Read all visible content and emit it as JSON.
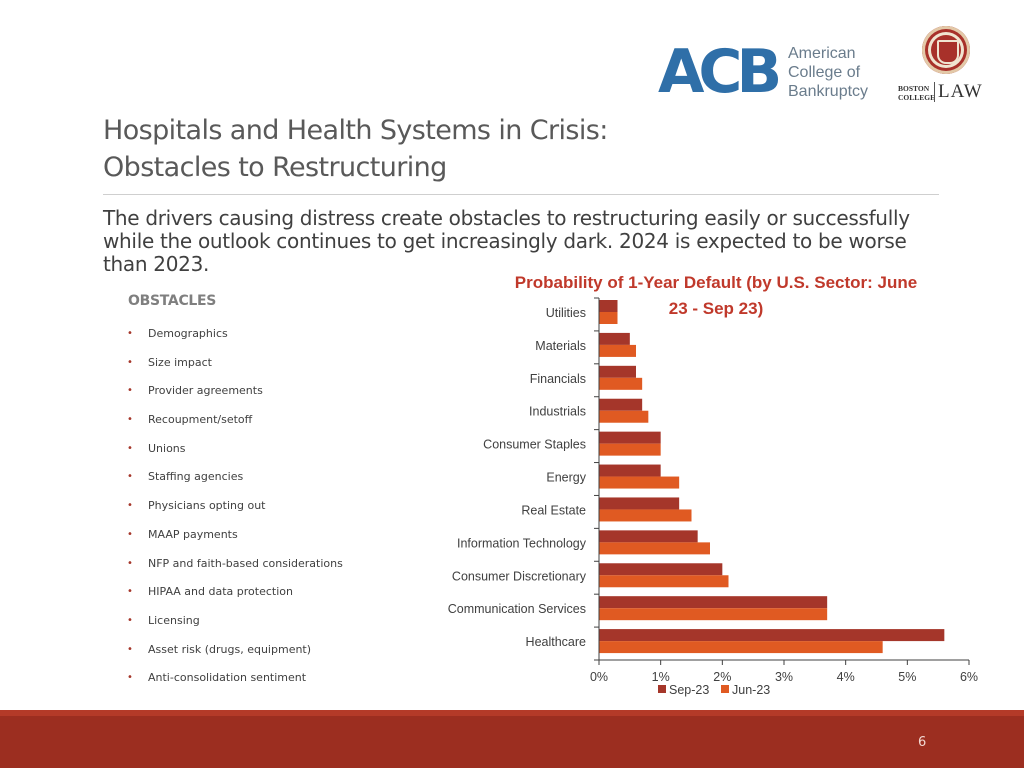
{
  "logos": {
    "acb_letters": "ACB",
    "acb_words": [
      "American",
      "College of",
      "Bankruptcy"
    ],
    "bc_name": [
      "BOSTON",
      "COLLEGE"
    ],
    "bc_law": "LAW"
  },
  "slide": {
    "title_line1": "Hospitals and Health Systems in Crisis:",
    "title_line2": "Obstacles to Restructuring",
    "intro": "The drivers causing distress create obstacles to restructuring easily or successfully while the outlook continues to get increasingly dark. 2024 is expected to be worse than 2023.",
    "page_number": "6"
  },
  "obstacles": {
    "heading": "OBSTACLES",
    "items": [
      "Demographics",
      "Size impact",
      "Provider agreements",
      "Recoupment/setoff",
      "Unions",
      "Staffing agencies",
      "Physicians opting out",
      "MAAP payments",
      "NFP and faith-based considerations",
      "HIPAA and data protection",
      "Licensing",
      "Asset risk (drugs, equipment)",
      "Anti-consolidation sentiment"
    ]
  },
  "colors": {
    "sep23": "#a5362a",
    "jun23": "#e05a22",
    "axis": "#404040",
    "footer": "#9c2e20"
  },
  "chart_data": {
    "type": "bar",
    "orientation": "horizontal",
    "title_lines": [
      "Probability of 1-Year Default (by U.S. Sector: June",
      "23 - Sep 23)"
    ],
    "categories": [
      "Utilities",
      "Materials",
      "Financials",
      "Industrials",
      "Consumer Staples",
      "Energy",
      "Real Estate",
      "Information Technology",
      "Consumer Discretionary",
      "Communication Services",
      "Healthcare"
    ],
    "series": [
      {
        "name": "Sep-23",
        "values": [
          0.3,
          0.5,
          0.6,
          0.7,
          1.0,
          1.0,
          1.3,
          1.6,
          2.0,
          3.7,
          5.6
        ]
      },
      {
        "name": "Jun-23",
        "values": [
          0.3,
          0.6,
          0.7,
          0.8,
          1.0,
          1.3,
          1.5,
          1.8,
          2.1,
          3.7,
          4.6
        ]
      }
    ],
    "xlim": [
      0,
      6
    ],
    "x_ticks": [
      "0%",
      "1%",
      "2%",
      "3%",
      "4%",
      "5%",
      "6%"
    ],
    "x_unit": "%",
    "grid": false,
    "legend": "bottom"
  }
}
